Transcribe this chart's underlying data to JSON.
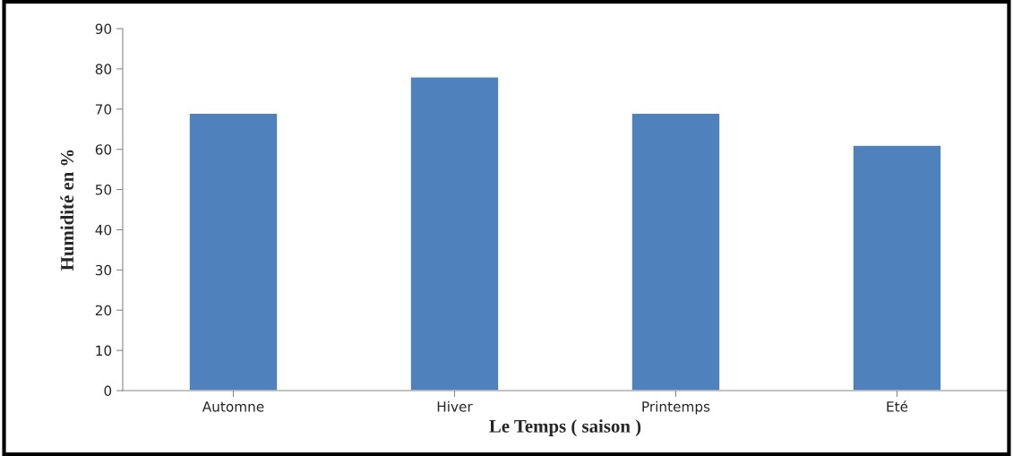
{
  "chart_data": {
    "type": "bar",
    "xlabel": "Le Temps ( saison )",
    "ylabel": "Humidité en %",
    "categories": [
      "Automne",
      "Hiver",
      "Printemps",
      "Eté"
    ],
    "values": [
      69,
      78,
      69,
      61
    ],
    "color": "#4f81bd",
    "ylim": [
      0,
      90
    ],
    "yticks": [
      0,
      10,
      20,
      30,
      40,
      50,
      60,
      70,
      80,
      90
    ],
    "grid": false,
    "legend": false
  }
}
